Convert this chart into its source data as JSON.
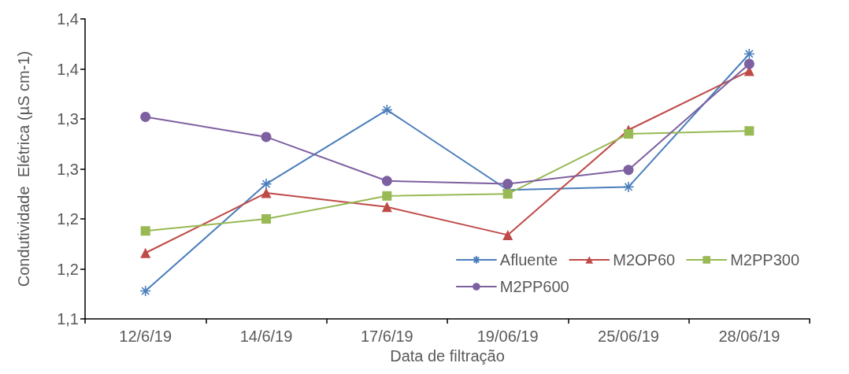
{
  "chart_data": {
    "type": "line",
    "xlabel": "Data de filtração",
    "ylabel": "Condutividade  Elétrica (µS cm-1)",
    "categories": [
      "12/6/19",
      "14/6/19",
      "17/6/19",
      "19/06/19",
      "25/06/19",
      "28/06/19"
    ],
    "series": [
      {
        "name": "Afluente",
        "color": "#4a7ebb",
        "marker": "cross",
        "values": [
          1.128,
          1.235,
          1.309,
          1.229,
          1.232,
          1.365
        ]
      },
      {
        "name": "M2OP60",
        "color": "#be4b48",
        "marker": "triangle",
        "values": [
          1.166,
          1.226,
          1.212,
          1.184,
          1.289,
          1.348
        ]
      },
      {
        "name": "M2PP300",
        "color": "#98b954",
        "marker": "square",
        "values": [
          1.188,
          1.2,
          1.223,
          1.225,
          1.285,
          1.288
        ]
      },
      {
        "name": "M2PP600",
        "color": "#7d60a0",
        "marker": "circle",
        "values": [
          1.302,
          1.282,
          1.238,
          1.235,
          1.249,
          1.355
        ]
      }
    ],
    "ylim": [
      1.1,
      1.4
    ],
    "yticks": [
      {
        "value": 1.1,
        "label": "1,1"
      },
      {
        "value": 1.15,
        "label": "1,2"
      },
      {
        "value": 1.2,
        "label": "1,2"
      },
      {
        "value": 1.25,
        "label": "1,3"
      },
      {
        "value": 1.3,
        "label": "1,3"
      },
      {
        "value": 1.35,
        "label": "1,4"
      },
      {
        "value": 1.4,
        "label": "1,4"
      }
    ],
    "grid": false,
    "legend": "bottom right",
    "line_style": "solid"
  }
}
